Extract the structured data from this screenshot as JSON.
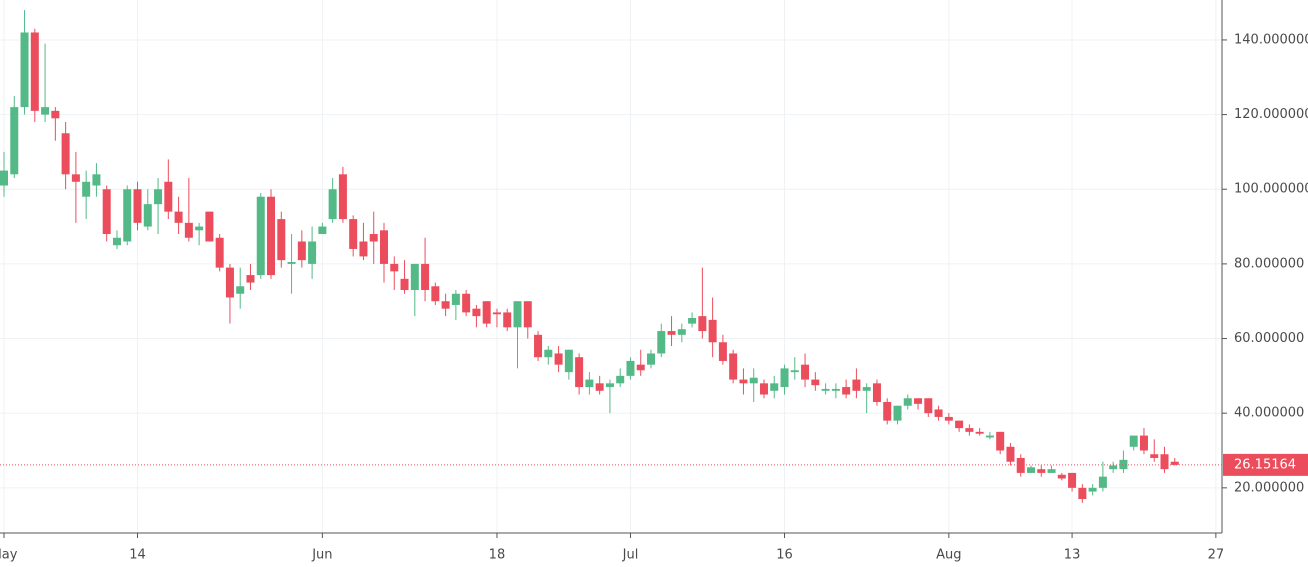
{
  "chart_data": {
    "type": "candlestick",
    "categories": [
      "May",
      null,
      null,
      null,
      null,
      null,
      null,
      null,
      null,
      null,
      null,
      null,
      null,
      "14",
      null,
      null,
      null,
      null,
      null,
      null,
      null,
      null,
      null,
      null,
      null,
      null,
      null,
      null,
      null,
      null,
      null,
      "Jun",
      null,
      null,
      null,
      null,
      null,
      null,
      null,
      null,
      null,
      null,
      null,
      null,
      null,
      null,
      null,
      null,
      "18",
      null,
      null,
      null,
      null,
      null,
      null,
      null,
      null,
      null,
      null,
      null,
      null,
      "Jul",
      null,
      null,
      null,
      null,
      null,
      null,
      null,
      null,
      null,
      null,
      null,
      null,
      null,
      null,
      "16",
      null,
      null,
      null,
      null,
      null,
      null,
      null,
      null,
      null,
      null,
      null,
      null,
      null,
      null,
      null,
      "Aug",
      null,
      null,
      null,
      null,
      null,
      null,
      null,
      null,
      null,
      null,
      null,
      "13",
      null,
      null,
      null,
      null,
      null,
      null,
      null,
      null,
      null,
      null,
      null,
      null,
      null,
      "27"
    ],
    "open": [
      101,
      104,
      122,
      142,
      120,
      121,
      115,
      104,
      98,
      101,
      100,
      85,
      86,
      100,
      90,
      96,
      102,
      94,
      91,
      89,
      94,
      87,
      79,
      72,
      77,
      77,
      98,
      92,
      80,
      86,
      80,
      88,
      92,
      104,
      92,
      86,
      88,
      89,
      80,
      76,
      73,
      80,
      74,
      70,
      69,
      72,
      68,
      70,
      67,
      67,
      63,
      70,
      61,
      55,
      56,
      51,
      55,
      47,
      48,
      47,
      48,
      50,
      53,
      53,
      56,
      62,
      61,
      64,
      66,
      65,
      59,
      56,
      49,
      48,
      48,
      46,
      47,
      51,
      53,
      49,
      46,
      46,
      47,
      49,
      46,
      48,
      43,
      38,
      42,
      44,
      44,
      41,
      39,
      38,
      36,
      35,
      33.5,
      35,
      31,
      28,
      24,
      25,
      24,
      23.5,
      24,
      20,
      19,
      20,
      25,
      25,
      31,
      34,
      29,
      29,
      27,
      null,
      null,
      null,
      null
    ],
    "high": [
      110,
      125,
      148,
      143,
      139,
      122,
      118,
      110,
      105,
      107,
      101,
      89,
      101,
      102,
      100,
      103,
      108,
      98,
      103,
      91,
      94,
      88,
      80,
      79,
      80,
      99,
      100,
      94,
      88,
      89,
      90,
      91,
      103,
      106,
      93,
      91,
      94,
      91,
      82,
      81,
      80,
      87,
      75,
      72,
      73,
      73,
      69,
      70,
      68,
      68,
      70,
      70,
      62,
      58,
      58,
      57,
      56,
      51,
      50,
      49,
      52,
      55,
      57,
      57,
      64,
      66,
      64,
      67,
      79,
      71,
      61,
      57,
      52,
      52,
      49,
      50,
      53,
      55,
      56,
      51,
      48,
      48,
      49,
      52,
      48,
      49,
      44,
      42,
      45,
      44,
      44,
      42,
      40,
      38,
      37,
      36,
      35,
      35,
      32,
      29,
      26,
      26,
      26,
      24,
      24,
      21,
      21,
      27,
      27,
      30,
      34,
      36,
      33,
      31,
      28,
      null,
      null,
      null,
      null
    ],
    "low": [
      98,
      103,
      120,
      118,
      118,
      113,
      100,
      91,
      92,
      98,
      86,
      84,
      85,
      89,
      89,
      88,
      92,
      88,
      86,
      85,
      86,
      78,
      64,
      68,
      73,
      76,
      76,
      79,
      72,
      79,
      76,
      88,
      91,
      91,
      82,
      81,
      80,
      75,
      73,
      72,
      66,
      70,
      69,
      66,
      65,
      66,
      63,
      63,
      63,
      62,
      52,
      60,
      54,
      53,
      51,
      49,
      45,
      45,
      45,
      40,
      47,
      49,
      50,
      52,
      55,
      58,
      59,
      63,
      60,
      55,
      53,
      48,
      45,
      43,
      44,
      44,
      45,
      49,
      47,
      46,
      45,
      44,
      44,
      44,
      40,
      42,
      37,
      37,
      41,
      41,
      39,
      38,
      37,
      35,
      34,
      34,
      33,
      29,
      26,
      23,
      24,
      23,
      24,
      22,
      19,
      16,
      18,
      19,
      24,
      24,
      30,
      29,
      27,
      24,
      26,
      null,
      null,
      null,
      null
    ],
    "close": [
      105,
      122,
      142,
      121,
      122,
      119,
      104,
      102,
      102,
      104,
      88,
      87,
      100,
      91,
      96,
      100,
      94,
      91,
      87,
      90,
      86,
      79,
      71,
      74,
      75,
      98,
      77,
      81,
      80.5,
      81,
      86,
      90,
      100,
      92,
      84,
      82,
      86,
      80,
      78,
      73,
      80,
      73,
      70,
      68,
      72,
      67,
      66,
      64,
      66.5,
      63,
      70,
      63,
      55,
      57,
      53,
      57,
      47,
      49,
      46,
      48,
      50,
      54,
      51.5,
      56,
      62,
      61,
      62.5,
      65.5,
      62,
      59,
      54,
      49,
      48,
      49.5,
      45,
      48,
      52,
      51.5,
      49,
      47.5,
      46.5,
      46.5,
      45,
      46,
      47,
      43,
      38,
      42,
      44,
      42.5,
      40,
      39,
      38,
      36,
      35,
      34.5,
      34,
      30,
      27,
      24,
      25.5,
      24,
      25,
      22.5,
      20,
      17,
      20,
      23,
      26,
      27.5,
      34,
      30,
      28,
      25,
      26.15164,
      null,
      null,
      null,
      null
    ],
    "up_color": "#53b987",
    "down_color": "#eb4d5c",
    "ylim": [
      7.9,
      150.7
    ],
    "yticks": [
      {
        "value": 20,
        "label": "20.000000"
      },
      {
        "value": 40,
        "label": "40.000000"
      },
      {
        "value": 60,
        "label": "60.000000"
      },
      {
        "value": 80,
        "label": "80.000000"
      },
      {
        "value": 100,
        "label": "100.000000"
      },
      {
        "value": 120,
        "label": "120.000000"
      },
      {
        "value": 140,
        "label": "140.000000"
      }
    ],
    "last_price": 26.15164,
    "grid": true
  }
}
